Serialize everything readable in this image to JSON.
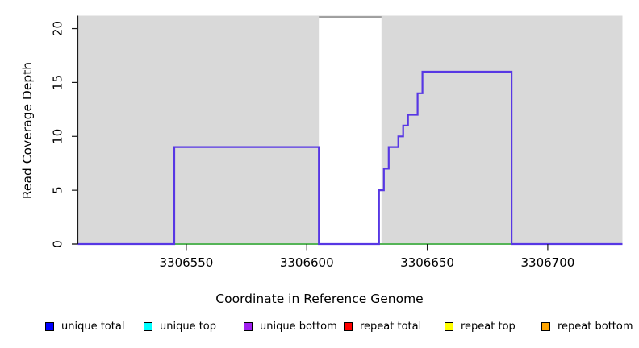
{
  "chart_data": {
    "type": "line",
    "variant": "step",
    "title": "",
    "xlabel": "Coordinate in Reference Genome",
    "ylabel": "Read Coverage Depth",
    "xlim": [
      3306505,
      3306731
    ],
    "ylim": [
      0,
      21.2
    ],
    "x_ticks": [
      3306550,
      3306600,
      3306650,
      3306700
    ],
    "y_ticks": [
      0,
      5,
      10,
      15,
      20
    ],
    "grid": false,
    "panel_background": "#d9d9d9",
    "axis_color": "#1a1a1a",
    "masked_region": {
      "x_start": 3306605,
      "x_end": 3306631,
      "fill": "#ffffff",
      "top_border_color": "#8f8f8f"
    },
    "series": [
      {
        "name": "zero-baseline-under",
        "color": "#e9e0a2",
        "line_width": 1,
        "points": [
          [
            3306505,
            0
          ],
          [
            3306731,
            0
          ]
        ]
      },
      {
        "name": "zero-baseline",
        "color": "#55b457",
        "line_width": 2,
        "points": [
          [
            3306505,
            0
          ],
          [
            3306731,
            0
          ]
        ]
      },
      {
        "name": "coverage-step",
        "color": "#5737e4",
        "line_width": 2.2,
        "points": [
          [
            3306505,
            0
          ],
          [
            3306545,
            0
          ],
          [
            3306545,
            9
          ],
          [
            3306605,
            9
          ],
          [
            3306605,
            0
          ],
          [
            3306630,
            0
          ],
          [
            3306630,
            5
          ],
          [
            3306632,
            5
          ],
          [
            3306632,
            7
          ],
          [
            3306634,
            7
          ],
          [
            3306634,
            9
          ],
          [
            3306638,
            9
          ],
          [
            3306638,
            10
          ],
          [
            3306640,
            10
          ],
          [
            3306640,
            11
          ],
          [
            3306642,
            11
          ],
          [
            3306642,
            12
          ],
          [
            3306646,
            12
          ],
          [
            3306646,
            14
          ],
          [
            3306648,
            14
          ],
          [
            3306648,
            16
          ],
          [
            3306685,
            16
          ],
          [
            3306685,
            0
          ],
          [
            3306731,
            0
          ]
        ]
      }
    ],
    "legend": {
      "position": "bottom",
      "entries": [
        {
          "label": "unique total",
          "color": "#0000ff"
        },
        {
          "label": "unique top",
          "color": "#00ffff"
        },
        {
          "label": "unique bottom",
          "color": "#a020f0"
        },
        {
          "label": "repeat total",
          "color": "#ff0000"
        },
        {
          "label": "repeat top",
          "color": "#ffff00"
        },
        {
          "label": "repeat bottom",
          "color": "#ffa500"
        }
      ]
    }
  }
}
